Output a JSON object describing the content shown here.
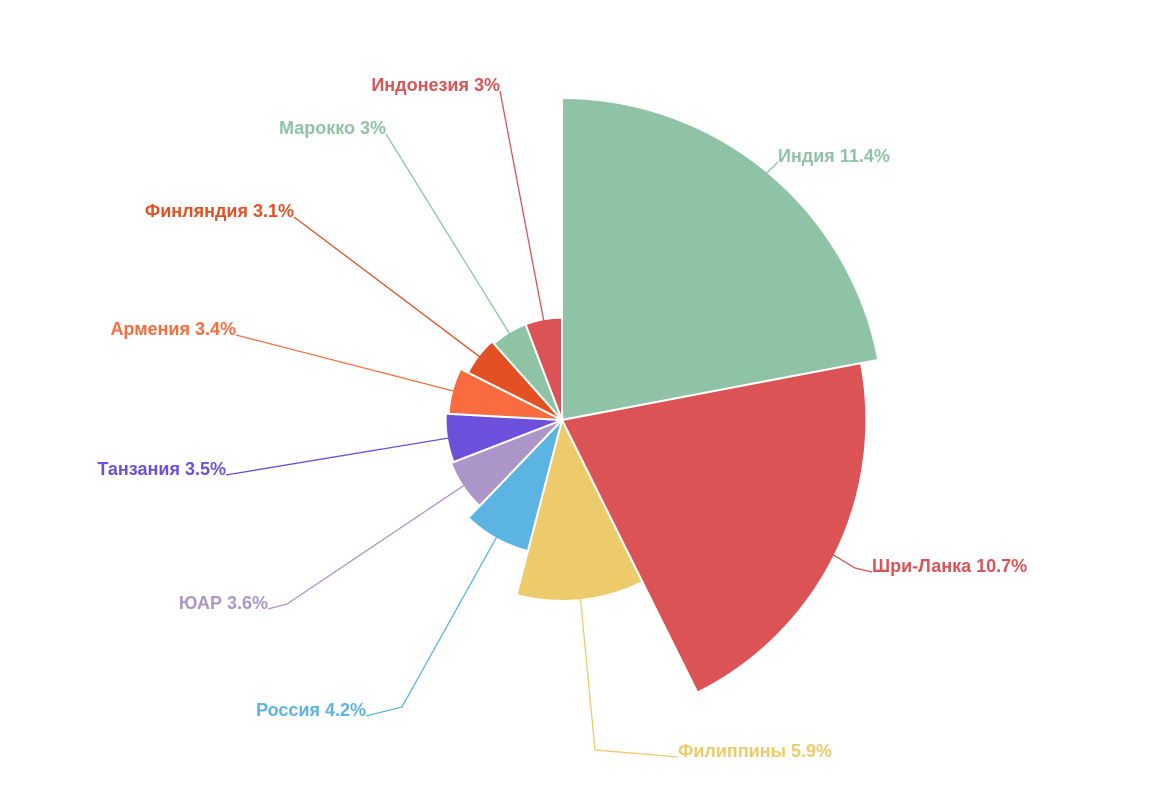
{
  "chart_data": {
    "type": "pie",
    "variant": "nightingale-rose",
    "title": "",
    "categories": [
      "Индия",
      "Шри-Ланка",
      "Филиппины",
      "Россия",
      "ЮАР",
      "Танзания",
      "Армения",
      "Финляндия",
      "Марокко",
      "Индонезия"
    ],
    "values": [
      11.4,
      10.7,
      5.9,
      4.2,
      3.6,
      3.5,
      3.4,
      3.1,
      3.0,
      3.0
    ],
    "labels": [
      "Индия 11.4%",
      "Шри-Ланка 10.7%",
      "Филиппины 5.9%",
      "Россия 4.2%",
      "ЮАР 3.6%",
      "Танзания 3.5%",
      "Армения 3.4%",
      "Финляндия 3.1%",
      "Марокко 3%",
      "Индонезия 3%"
    ],
    "colors": [
      "#8fc3a6",
      "#dc5356",
      "#eecb6a",
      "#5cb4e3",
      "#ac96c9",
      "#6c50dc",
      "#f96c3f",
      "#e35024",
      "#8fc3a6",
      "#dc5356"
    ],
    "legend": "none",
    "grid": false
  }
}
